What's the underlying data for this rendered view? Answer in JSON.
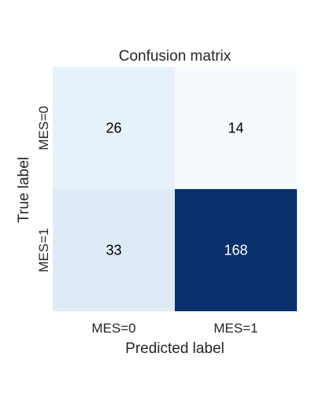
{
  "chart_data": {
    "type": "heatmap",
    "title": "Confusion matrix",
    "xlabel": "Predicted label",
    "ylabel": "True label",
    "x_categories": [
      "MES=0",
      "MES=1"
    ],
    "y_categories": [
      "MES=0",
      "MES=1"
    ],
    "values": [
      [
        26,
        14
      ],
      [
        33,
        168
      ]
    ],
    "colormap": "Blues",
    "colors": {
      "low": "#f7fbff",
      "high": "#08306b",
      "text_dark": "#000000",
      "text_light": "#ffffff"
    },
    "colorbar": false,
    "grid": false
  }
}
